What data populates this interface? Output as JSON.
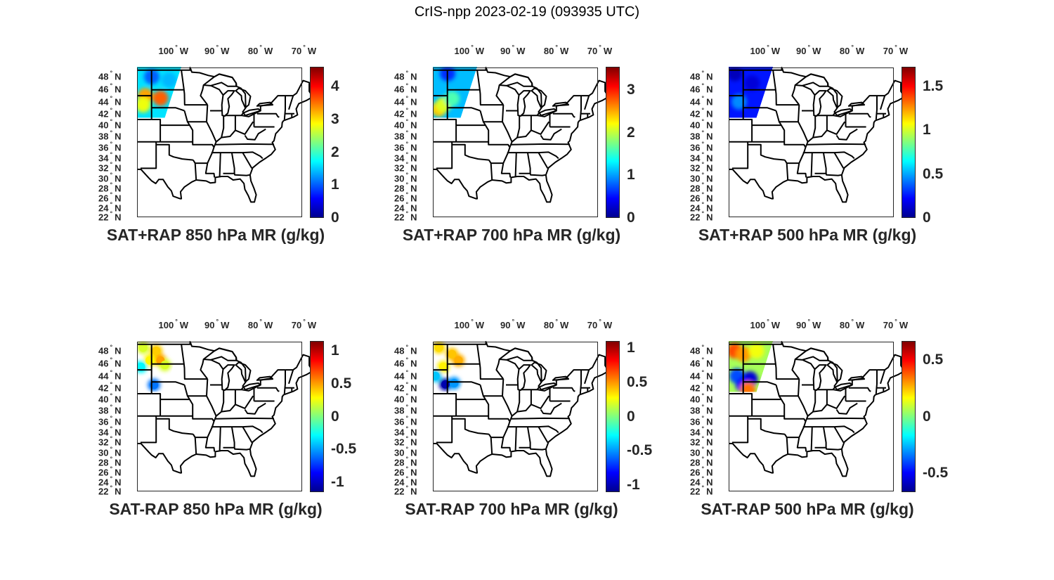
{
  "title": "CrIS-npp 2023-02-19 (093935 UTC)",
  "lon_ticks": [
    {
      "value": -100,
      "num": "100",
      "hem": "W"
    },
    {
      "value": -90,
      "num": "90",
      "hem": "W"
    },
    {
      "value": -80,
      "num": "80",
      "hem": "W"
    },
    {
      "value": -70,
      "num": "70",
      "hem": "W"
    }
  ],
  "lat_ticks": [
    {
      "value": 48,
      "num": "48",
      "hem": "N"
    },
    {
      "value": 46,
      "num": "46",
      "hem": "N"
    },
    {
      "value": 44,
      "num": "44",
      "hem": "N"
    },
    {
      "value": 42,
      "num": "42",
      "hem": "N"
    },
    {
      "value": 40,
      "num": "40",
      "hem": "N"
    },
    {
      "value": 38,
      "num": "38",
      "hem": "N"
    },
    {
      "value": 36,
      "num": "36",
      "hem": "N"
    },
    {
      "value": 34,
      "num": "34",
      "hem": "N"
    },
    {
      "value": 32,
      "num": "32",
      "hem": "N"
    },
    {
      "value": 30,
      "num": "30",
      "hem": "N"
    },
    {
      "value": 28,
      "num": "28",
      "hem": "N"
    },
    {
      "value": 26,
      "num": "26",
      "hem": "N"
    },
    {
      "value": 24,
      "num": "24",
      "hem": "N"
    },
    {
      "value": 22,
      "num": "22",
      "hem": "N"
    }
  ],
  "map_extent": {
    "lon": [
      -107.4,
      -71.2
    ],
    "lat": [
      22,
      49.4
    ]
  },
  "panels": [
    {
      "title": "SAT+RAP 850 hPa MR (g/kg)",
      "clim": [
        0,
        4.6
      ],
      "ticks": [
        {
          "v": 0,
          "label": "0"
        },
        {
          "v": 1,
          "label": "1"
        },
        {
          "v": 2,
          "label": "2"
        },
        {
          "v": 3,
          "label": "3"
        },
        {
          "v": 4,
          "label": "4"
        }
      ],
      "swath_base": 1.6,
      "blobs": [
        [
          -102,
          44.6,
          3.6
        ],
        [
          -105.5,
          45,
          3.3
        ],
        [
          -106,
          43.5,
          2.8
        ],
        [
          -104,
          48,
          1.0
        ],
        [
          -100,
          47.5,
          1.4
        ]
      ]
    },
    {
      "title": "SAT+RAP 700 hPa MR (g/kg)",
      "clim": [
        0,
        3.55
      ],
      "ticks": [
        {
          "v": 0,
          "label": "0"
        },
        {
          "v": 1,
          "label": "1"
        },
        {
          "v": 2,
          "label": "2"
        },
        {
          "v": 3,
          "label": "3"
        }
      ],
      "swath_base": 1.1,
      "blobs": [
        [
          -106,
          42.8,
          2.4
        ],
        [
          -105,
          43.5,
          2.1
        ],
        [
          -103,
          44.5,
          1.6
        ],
        [
          -104,
          48.5,
          0.6
        ]
      ]
    },
    {
      "title": "SAT+RAP 500 hPa MR (g/kg)",
      "clim": [
        0,
        1.72
      ],
      "ticks": [
        {
          "v": 0,
          "label": "0"
        },
        {
          "v": 0.5,
          "label": "0.5"
        },
        {
          "v": 1,
          "label": "1"
        },
        {
          "v": 1.5,
          "label": "1.5"
        }
      ],
      "swath_base": 0.25,
      "blobs": [
        [
          -105,
          44,
          0.45
        ],
        [
          -102,
          47,
          0.15
        ],
        [
          -106,
          48.5,
          0.1
        ]
      ]
    },
    {
      "title": "SAT-RAP 850 hPa MR (g/kg)",
      "clim": [
        -1.15,
        1.15
      ],
      "ticks": [
        {
          "v": -1,
          "label": "-1"
        },
        {
          "v": -0.5,
          "label": "-0.5"
        },
        {
          "v": 0,
          "label": "0"
        },
        {
          "v": 0.5,
          "label": "0.5"
        },
        {
          "v": 1,
          "label": "1"
        }
      ],
      "swath_base": null,
      "blobs": [
        [
          -106,
          48.5,
          0.2
        ],
        [
          -103,
          48,
          0.4
        ],
        [
          -102,
          46.5,
          0.5
        ],
        [
          -104.5,
          46.5,
          0.3
        ],
        [
          -106.5,
          45.5,
          -0.3
        ],
        [
          -103.5,
          42.5,
          -0.6
        ],
        [
          -101,
          45.8,
          0.2
        ]
      ]
    },
    {
      "title": "SAT-RAP 700 hPa MR (g/kg)",
      "clim": [
        -1.1,
        1.1
      ],
      "ticks": [
        {
          "v": -1,
          "label": "-1"
        },
        {
          "v": -0.5,
          "label": "-0.5"
        },
        {
          "v": 0,
          "label": "0"
        },
        {
          "v": 0.5,
          "label": "0.5"
        },
        {
          "v": 1,
          "label": "1"
        }
      ],
      "swath_base": null,
      "blobs": [
        [
          -106,
          48.5,
          0.35
        ],
        [
          -103,
          47.5,
          0.4
        ],
        [
          -101.5,
          46.5,
          0.45
        ],
        [
          -105,
          45.5,
          0.3
        ],
        [
          -106.8,
          44,
          -0.4
        ],
        [
          -104.5,
          42.6,
          -1.0
        ],
        [
          -102.5,
          42.8,
          -0.5
        ]
      ]
    },
    {
      "title": "SAT-RAP 500 hPa MR (g/kg)",
      "clim": [
        -0.665,
        0.665
      ],
      "ticks": [
        {
          "v": -0.5,
          "label": "-0.5"
        },
        {
          "v": 0,
          "label": "0"
        },
        {
          "v": 0.5,
          "label": "0.5"
        }
      ],
      "swath_base": 0.05,
      "blobs": [
        [
          -106,
          48,
          0.4
        ],
        [
          -104,
          47.5,
          0.3
        ],
        [
          -101,
          48,
          0.15
        ],
        [
          -105.5,
          44,
          -0.4
        ],
        [
          -102.5,
          43.5,
          -0.55
        ],
        [
          -104,
          42.5,
          -0.5
        ],
        [
          -103,
          41.8,
          0.35
        ]
      ]
    }
  ]
}
